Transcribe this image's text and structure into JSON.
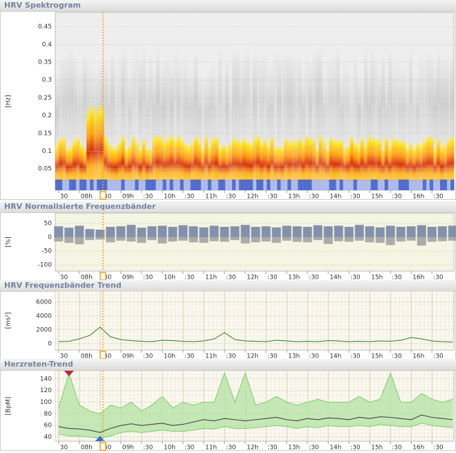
{
  "x_axis": {
    "xlim": [
      7.42,
      17.03
    ],
    "xticks": [
      {
        "value": 7.5,
        "label": "30"
      },
      {
        "value": 8,
        "label": "08h"
      },
      {
        "value": 8.5,
        "label": ":30"
      },
      {
        "value": 9,
        "label": "09h"
      },
      {
        "value": 9.5,
        "label": ":30"
      },
      {
        "value": 10,
        "label": "10h"
      },
      {
        "value": 10.5,
        "label": ":30"
      },
      {
        "value": 11,
        "label": "11h"
      },
      {
        "value": 11.5,
        "label": ":30"
      },
      {
        "value": 12,
        "label": "12h"
      },
      {
        "value": 12.5,
        "label": ":30"
      },
      {
        "value": 13,
        "label": "13h"
      },
      {
        "value": 13.5,
        "label": ":30"
      },
      {
        "value": 14,
        "label": "14h"
      },
      {
        "value": 14.5,
        "label": ":30"
      },
      {
        "value": 15,
        "label": "15h"
      },
      {
        "value": 15.5,
        "label": ":30"
      },
      {
        "value": 16,
        "label": "16h"
      },
      {
        "value": 16.5,
        "label": ":30"
      }
    ],
    "x": [
      7.5,
      7.75,
      8,
      8.25,
      8.5,
      8.75,
      9,
      9.25,
      9.5,
      9.75,
      10,
      10.25,
      10.5,
      10.75,
      11,
      11.25,
      11.5,
      11.75,
      12,
      12.25,
      12.5,
      12.75,
      13,
      13.25,
      13.5,
      13.75,
      14,
      14.25,
      14.5,
      14.75,
      15,
      15.25,
      15.5,
      15.75,
      16,
      16.25,
      16.5,
      16.75,
      17
    ],
    "cursor": 8.57
  },
  "chart_data": [
    {
      "type": "heatmap",
      "title": "HRV Spektrogram",
      "ylabel": "[Hz]",
      "ylim": [
        -0.01,
        0.49
      ],
      "yticks": [
        0.05,
        0.1,
        0.15,
        0.2,
        0.25,
        0.3,
        0.35,
        0.4,
        0.45
      ]
    },
    {
      "type": "bar",
      "title": "HRV Normalisierte Frequenzbänder",
      "ylabel": "[%]",
      "ylim": [
        -122,
        88
      ],
      "yticks": [
        50,
        0,
        -50,
        -100
      ],
      "series": [
        {
          "color": "#8391ab",
          "values": [
            40,
            35,
            42,
            30,
            28,
            38,
            40,
            45,
            35,
            40,
            42,
            38,
            44,
            40,
            36,
            42,
            38,
            40,
            45,
            38,
            40,
            36,
            42,
            40,
            38,
            44,
            40,
            42,
            38,
            45,
            40,
            36,
            42,
            38,
            40,
            44,
            38,
            40,
            42
          ]
        },
        {
          "color": "#ababab",
          "values": [
            -15,
            -20,
            -25,
            -10,
            -8,
            -18,
            -12,
            -15,
            -20,
            -10,
            -22,
            -15,
            -12,
            -18,
            -20,
            -14,
            -16,
            -10,
            -22,
            -18,
            -15,
            -20,
            -12,
            -16,
            -18,
            -10,
            -24,
            -14,
            -16,
            -12,
            -18,
            -20,
            -28,
            -15,
            -12,
            -30,
            -16,
            -14,
            -12
          ]
        }
      ]
    },
    {
      "type": "line",
      "title": "HRV Frequenzbänder Trend",
      "ylabel": "[ms²]",
      "ylim": [
        -900,
        7600
      ],
      "yticks": [
        0,
        2000,
        4000,
        6000
      ],
      "series": [
        {
          "color": "#2e7d1e",
          "values": [
            300,
            350,
            700,
            1200,
            2400,
            1000,
            600,
            450,
            350,
            300,
            500,
            450,
            350,
            300,
            400,
            700,
            1600,
            600,
            400,
            350,
            300,
            500,
            400,
            300,
            350,
            300,
            450,
            400,
            300,
            350,
            300,
            400,
            350,
            500,
            900,
            700,
            400,
            300,
            250
          ]
        }
      ]
    },
    {
      "type": "band",
      "title": "Herzraten-Trend",
      "ylabel": "[BpM]",
      "ylim": [
        33,
        154
      ],
      "yticks": [
        40,
        60,
        80,
        100,
        120,
        140
      ],
      "series": [
        {
          "color": "#333333",
          "values": [
            58,
            55,
            54,
            52,
            48,
            55,
            60,
            63,
            60,
            62,
            64,
            60,
            62,
            66,
            70,
            68,
            72,
            70,
            68,
            70,
            72,
            74,
            70,
            68,
            72,
            70,
            73,
            72,
            70,
            74,
            72,
            75,
            74,
            72,
            70,
            78,
            74,
            72,
            70
          ]
        },
        {
          "color": "#6cc35a",
          "values": [
            45,
            42,
            42,
            40,
            38,
            42,
            48,
            50,
            48,
            50,
            52,
            50,
            50,
            52,
            55,
            54,
            58,
            55,
            55,
            56,
            58,
            60,
            58,
            55,
            58,
            56,
            60,
            58,
            58,
            60,
            58,
            62,
            60,
            58,
            58,
            64,
            60,
            58,
            56
          ]
        },
        {
          "color": "#6cc35a",
          "values": [
            90,
            150,
            95,
            85,
            80,
            95,
            90,
            100,
            85,
            95,
            110,
            90,
            100,
            95,
            100,
            100,
            150,
            100,
            150,
            95,
            100,
            110,
            100,
            95,
            100,
            105,
            100,
            100,
            100,
            110,
            100,
            105,
            150,
            100,
            100,
            115,
            105,
            100,
            105
          ]
        }
      ]
    }
  ]
}
